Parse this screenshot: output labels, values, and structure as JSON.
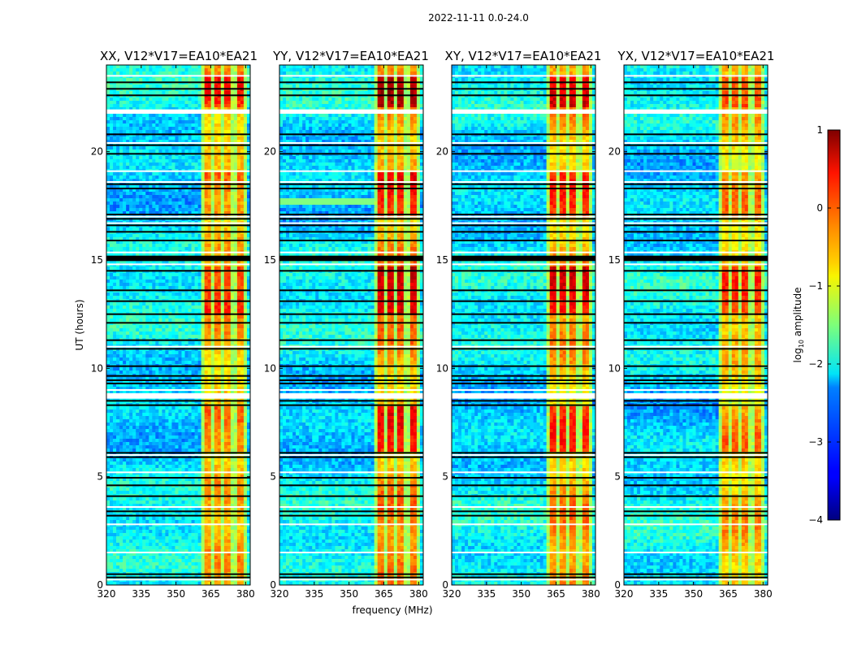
{
  "chart_data": {
    "type": "heatmap",
    "title": "2022-11-11 0.0-24.0",
    "panels": [
      {
        "title": "XX, V12*V17=EA10*EA21",
        "pol": "XX",
        "intensity": 0.55
      },
      {
        "title": "YY, V12*V17=EA10*EA21",
        "pol": "YY",
        "intensity": 0.85
      },
      {
        "title": "XY, V12*V17=EA10*EA21",
        "pol": "XY",
        "intensity": 0.75
      },
      {
        "title": "YX, V12*V17=EA10*EA21",
        "pol": "YX",
        "intensity": 0.5
      }
    ],
    "xlabel": "frequency (MHz)",
    "ylabel": "UT (hours)",
    "xlim": [
      320,
      382
    ],
    "ylim": [
      0,
      24
    ],
    "xticks": [
      320,
      335,
      350,
      365,
      380
    ],
    "yticks": [
      0,
      5,
      10,
      15,
      20
    ],
    "colorbar": {
      "label_prefix": "log",
      "label_sub": "10",
      "label_suffix": " amplitude",
      "range": [
        -4,
        1
      ],
      "ticks": [
        1,
        0,
        -1,
        -2,
        -3,
        -4
      ],
      "tick_labels": [
        "1",
        "0",
        "−1",
        "−2",
        "−3",
        "−4"
      ],
      "colormap": "jet"
    },
    "signal_band_mhz": [
      361,
      380
    ],
    "subband_edges_mhz": [
      361,
      365.5,
      370,
      375,
      380
    ],
    "flagged_black_hours": [
      0.35,
      0.5,
      3.2,
      3.4,
      4.1,
      4.6,
      4.95,
      5.9,
      6.1,
      8.3,
      8.5,
      9.3,
      9.45,
      9.65,
      10.1,
      10.9,
      11.3,
      12.1,
      12.5,
      13.1,
      13.6,
      14.5,
      15.9,
      16.3,
      16.6,
      16.9,
      17.1,
      18.3,
      18.5,
      19.9,
      20.3,
      20.8,
      22.6,
      22.9,
      23.2
    ],
    "flagged_black_bands_hours": [
      [
        14.95,
        15.2
      ]
    ],
    "flagged_white_hours": [
      0.25,
      1.5,
      2.8,
      3.6,
      5.2,
      6.0,
      8.7,
      9.0,
      11.0,
      14.8,
      15.35,
      16.7,
      17.0,
      18.6,
      19.1,
      20.4,
      21.85,
      21.9,
      23.5
    ],
    "white_bands_hours": [
      [
        8.6,
        8.85
      ],
      [
        21.75,
        21.95
      ]
    ]
  }
}
